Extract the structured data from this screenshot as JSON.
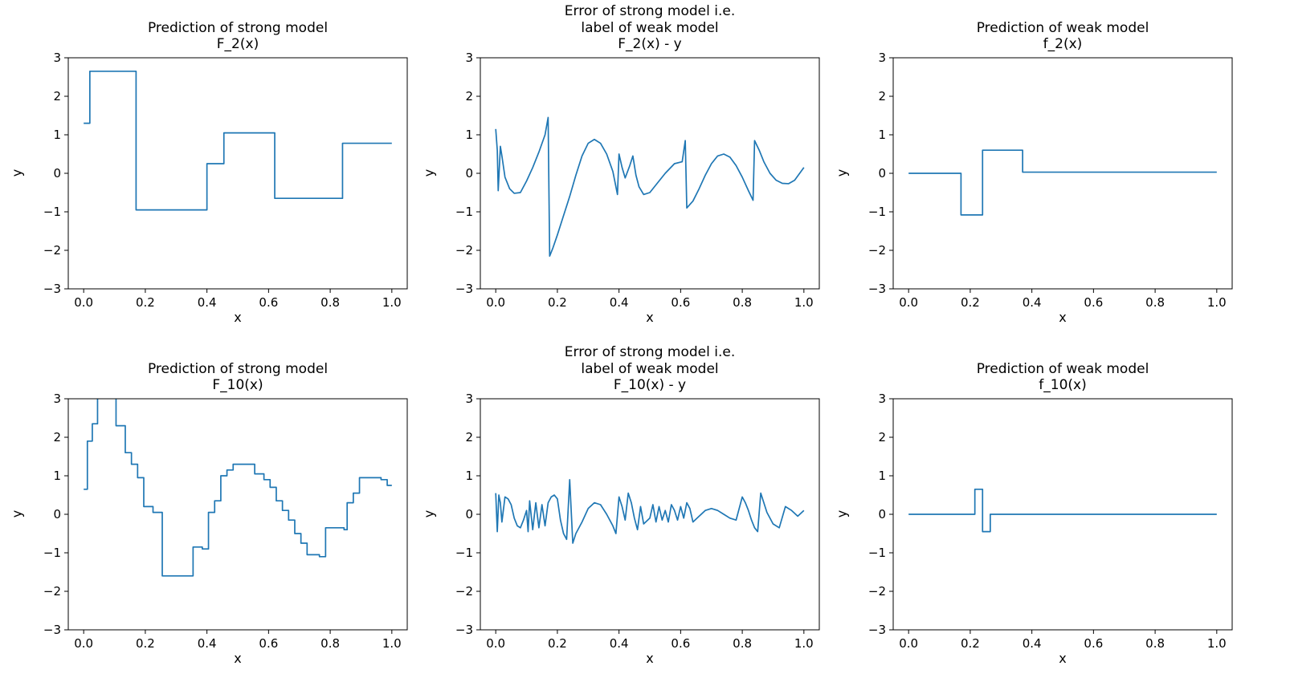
{
  "figure": {
    "background": "#ffffff",
    "line_color": "#1f77b4",
    "spine_color": "#000000",
    "text_color": "#000000"
  },
  "chart_data": [
    {
      "type": "step",
      "title": "Prediction of strong model\nF_2(x)",
      "xlabel": "x",
      "ylabel": "y",
      "xlim": [
        -0.05,
        1.05
      ],
      "ylim": [
        -3,
        3
      ],
      "xticks": [
        0.0,
        0.2,
        0.4,
        0.6,
        0.8,
        1.0
      ],
      "yticks": [
        -3,
        -2,
        -1,
        0,
        1,
        2,
        3
      ],
      "grid": false,
      "legend": "none",
      "x_end": 1.0,
      "steps": [
        [
          0.0,
          1.3
        ],
        [
          0.02,
          2.65
        ],
        [
          0.17,
          -0.95
        ],
        [
          0.4,
          0.25
        ],
        [
          0.455,
          1.05
        ],
        [
          0.62,
          -0.65
        ],
        [
          0.84,
          0.78
        ]
      ]
    },
    {
      "type": "line",
      "title": "Error of strong model i.e.\nlabel of weak model\nF_2(x) - y",
      "xlabel": "x",
      "ylabel": "y",
      "xlim": [
        -0.05,
        1.05
      ],
      "ylim": [
        -3,
        3
      ],
      "xticks": [
        0.0,
        0.2,
        0.4,
        0.6,
        0.8,
        1.0
      ],
      "yticks": [
        -3,
        -2,
        -1,
        0,
        1,
        2,
        3
      ],
      "grid": false,
      "legend": "none",
      "points": [
        [
          0.0,
          1.15
        ],
        [
          0.005,
          0.6
        ],
        [
          0.008,
          -0.45
        ],
        [
          0.012,
          0.2
        ],
        [
          0.015,
          0.7
        ],
        [
          0.02,
          0.45
        ],
        [
          0.03,
          -0.1
        ],
        [
          0.045,
          -0.4
        ],
        [
          0.06,
          -0.52
        ],
        [
          0.08,
          -0.5
        ],
        [
          0.1,
          -0.2
        ],
        [
          0.12,
          0.15
        ],
        [
          0.14,
          0.55
        ],
        [
          0.16,
          1.0
        ],
        [
          0.17,
          1.45
        ],
        [
          0.175,
          -2.15
        ],
        [
          0.185,
          -1.95
        ],
        [
          0.2,
          -1.6
        ],
        [
          0.22,
          -1.1
        ],
        [
          0.24,
          -0.6
        ],
        [
          0.26,
          -0.05
        ],
        [
          0.28,
          0.45
        ],
        [
          0.3,
          0.78
        ],
        [
          0.32,
          0.88
        ],
        [
          0.34,
          0.78
        ],
        [
          0.36,
          0.5
        ],
        [
          0.38,
          0.05
        ],
        [
          0.395,
          -0.55
        ],
        [
          0.4,
          0.5
        ],
        [
          0.41,
          0.15
        ],
        [
          0.42,
          -0.12
        ],
        [
          0.435,
          0.2
        ],
        [
          0.445,
          0.45
        ],
        [
          0.455,
          -0.05
        ],
        [
          0.465,
          -0.35
        ],
        [
          0.48,
          -0.55
        ],
        [
          0.5,
          -0.5
        ],
        [
          0.52,
          -0.3
        ],
        [
          0.55,
          0.0
        ],
        [
          0.58,
          0.25
        ],
        [
          0.605,
          0.3
        ],
        [
          0.615,
          0.85
        ],
        [
          0.62,
          -0.9
        ],
        [
          0.64,
          -0.72
        ],
        [
          0.66,
          -0.4
        ],
        [
          0.68,
          -0.05
        ],
        [
          0.7,
          0.25
        ],
        [
          0.72,
          0.45
        ],
        [
          0.74,
          0.5
        ],
        [
          0.76,
          0.42
        ],
        [
          0.78,
          0.2
        ],
        [
          0.8,
          -0.1
        ],
        [
          0.82,
          -0.45
        ],
        [
          0.835,
          -0.7
        ],
        [
          0.84,
          0.85
        ],
        [
          0.855,
          0.6
        ],
        [
          0.87,
          0.3
        ],
        [
          0.89,
          0.0
        ],
        [
          0.91,
          -0.18
        ],
        [
          0.93,
          -0.26
        ],
        [
          0.95,
          -0.27
        ],
        [
          0.97,
          -0.18
        ],
        [
          1.0,
          0.15
        ]
      ]
    },
    {
      "type": "step",
      "title": "Prediction of weak model\nf_2(x)",
      "xlabel": "x",
      "ylabel": "y",
      "xlim": [
        -0.05,
        1.05
      ],
      "ylim": [
        -3,
        3
      ],
      "xticks": [
        0.0,
        0.2,
        0.4,
        0.6,
        0.8,
        1.0
      ],
      "yticks": [
        -3,
        -2,
        -1,
        0,
        1,
        2,
        3
      ],
      "grid": false,
      "legend": "none",
      "x_end": 1.0,
      "steps": [
        [
          0.0,
          0.0
        ],
        [
          0.17,
          -1.08
        ],
        [
          0.24,
          0.6
        ],
        [
          0.37,
          0.03
        ]
      ]
    },
    {
      "type": "step",
      "title": "Prediction of strong model\nF_10(x)",
      "xlabel": "x",
      "ylabel": "y",
      "xlim": [
        -0.05,
        1.05
      ],
      "ylim": [
        -3,
        3
      ],
      "xticks": [
        0.0,
        0.2,
        0.4,
        0.6,
        0.8,
        1.0
      ],
      "yticks": [
        -3,
        -2,
        -1,
        0,
        1,
        2,
        3
      ],
      "grid": false,
      "legend": "none",
      "x_end": 1.0,
      "steps": [
        [
          0.0,
          0.65
        ],
        [
          0.012,
          1.9
        ],
        [
          0.028,
          2.35
        ],
        [
          0.045,
          3.05
        ],
        [
          0.105,
          2.3
        ],
        [
          0.135,
          1.6
        ],
        [
          0.155,
          1.3
        ],
        [
          0.175,
          0.95
        ],
        [
          0.195,
          0.2
        ],
        [
          0.225,
          0.05
        ],
        [
          0.255,
          -1.6
        ],
        [
          0.355,
          -0.85
        ],
        [
          0.385,
          -0.9
        ],
        [
          0.405,
          0.05
        ],
        [
          0.425,
          0.35
        ],
        [
          0.445,
          1.0
        ],
        [
          0.465,
          1.15
        ],
        [
          0.485,
          1.3
        ],
        [
          0.555,
          1.05
        ],
        [
          0.585,
          0.9
        ],
        [
          0.605,
          0.7
        ],
        [
          0.625,
          0.35
        ],
        [
          0.645,
          0.1
        ],
        [
          0.665,
          -0.15
        ],
        [
          0.685,
          -0.5
        ],
        [
          0.705,
          -0.75
        ],
        [
          0.725,
          -1.05
        ],
        [
          0.765,
          -1.1
        ],
        [
          0.785,
          -0.35
        ],
        [
          0.845,
          -0.4
        ],
        [
          0.855,
          0.3
        ],
        [
          0.875,
          0.55
        ],
        [
          0.895,
          0.95
        ],
        [
          0.965,
          0.9
        ],
        [
          0.985,
          0.75
        ]
      ]
    },
    {
      "type": "line",
      "title": "Error of strong model i.e.\nlabel of weak model\nF_10(x) - y",
      "xlabel": "x",
      "ylabel": "y",
      "xlim": [
        -0.05,
        1.05
      ],
      "ylim": [
        -3,
        3
      ],
      "xticks": [
        0.0,
        0.2,
        0.4,
        0.6,
        0.8,
        1.0
      ],
      "yticks": [
        -3,
        -2,
        -1,
        0,
        1,
        2,
        3
      ],
      "grid": false,
      "legend": "none",
      "points": [
        [
          0.0,
          0.55
        ],
        [
          0.005,
          -0.45
        ],
        [
          0.01,
          0.5
        ],
        [
          0.015,
          0.3
        ],
        [
          0.02,
          -0.2
        ],
        [
          0.03,
          0.45
        ],
        [
          0.04,
          0.4
        ],
        [
          0.05,
          0.25
        ],
        [
          0.06,
          -0.1
        ],
        [
          0.07,
          -0.3
        ],
        [
          0.08,
          -0.35
        ],
        [
          0.09,
          -0.15
        ],
        [
          0.1,
          0.1
        ],
        [
          0.105,
          -0.45
        ],
        [
          0.11,
          0.35
        ],
        [
          0.12,
          -0.4
        ],
        [
          0.13,
          0.3
        ],
        [
          0.14,
          -0.35
        ],
        [
          0.15,
          0.25
        ],
        [
          0.16,
          -0.3
        ],
        [
          0.17,
          0.3
        ],
        [
          0.18,
          0.45
        ],
        [
          0.19,
          0.5
        ],
        [
          0.2,
          0.4
        ],
        [
          0.21,
          -0.15
        ],
        [
          0.22,
          -0.5
        ],
        [
          0.23,
          -0.65
        ],
        [
          0.24,
          0.9
        ],
        [
          0.25,
          -0.75
        ],
        [
          0.26,
          -0.5
        ],
        [
          0.28,
          -0.2
        ],
        [
          0.3,
          0.15
        ],
        [
          0.32,
          0.3
        ],
        [
          0.34,
          0.25
        ],
        [
          0.36,
          0.0
        ],
        [
          0.38,
          -0.3
        ],
        [
          0.39,
          -0.5
        ],
        [
          0.4,
          0.45
        ],
        [
          0.41,
          0.2
        ],
        [
          0.42,
          -0.15
        ],
        [
          0.43,
          0.55
        ],
        [
          0.44,
          0.3
        ],
        [
          0.45,
          -0.1
        ],
        [
          0.46,
          -0.4
        ],
        [
          0.47,
          0.2
        ],
        [
          0.48,
          -0.25
        ],
        [
          0.5,
          -0.1
        ],
        [
          0.51,
          0.25
        ],
        [
          0.52,
          -0.2
        ],
        [
          0.53,
          0.2
        ],
        [
          0.54,
          -0.15
        ],
        [
          0.55,
          0.1
        ],
        [
          0.56,
          -0.2
        ],
        [
          0.57,
          0.25
        ],
        [
          0.58,
          0.1
        ],
        [
          0.59,
          -0.15
        ],
        [
          0.6,
          0.2
        ],
        [
          0.61,
          -0.1
        ],
        [
          0.62,
          0.3
        ],
        [
          0.63,
          0.15
        ],
        [
          0.64,
          -0.2
        ],
        [
          0.66,
          -0.05
        ],
        [
          0.68,
          0.1
        ],
        [
          0.7,
          0.15
        ],
        [
          0.72,
          0.1
        ],
        [
          0.74,
          0.0
        ],
        [
          0.76,
          -0.1
        ],
        [
          0.78,
          -0.15
        ],
        [
          0.8,
          0.45
        ],
        [
          0.81,
          0.3
        ],
        [
          0.82,
          0.1
        ],
        [
          0.83,
          -0.15
        ],
        [
          0.84,
          -0.35
        ],
        [
          0.85,
          -0.45
        ],
        [
          0.86,
          0.55
        ],
        [
          0.87,
          0.3
        ],
        [
          0.88,
          0.05
        ],
        [
          0.9,
          -0.25
        ],
        [
          0.92,
          -0.35
        ],
        [
          0.94,
          0.2
        ],
        [
          0.96,
          0.1
        ],
        [
          0.98,
          -0.05
        ],
        [
          1.0,
          0.1
        ]
      ]
    },
    {
      "type": "step",
      "title": "Prediction of weak model\nf_10(x)",
      "xlabel": "x",
      "ylabel": "y",
      "xlim": [
        -0.05,
        1.05
      ],
      "ylim": [
        -3,
        3
      ],
      "xticks": [
        0.0,
        0.2,
        0.4,
        0.6,
        0.8,
        1.0
      ],
      "yticks": [
        -3,
        -2,
        -1,
        0,
        1,
        2,
        3
      ],
      "grid": false,
      "legend": "none",
      "x_end": 1.0,
      "steps": [
        [
          0.0,
          0.0
        ],
        [
          0.215,
          0.65
        ],
        [
          0.24,
          -0.45
        ],
        [
          0.265,
          0.0
        ]
      ]
    }
  ]
}
